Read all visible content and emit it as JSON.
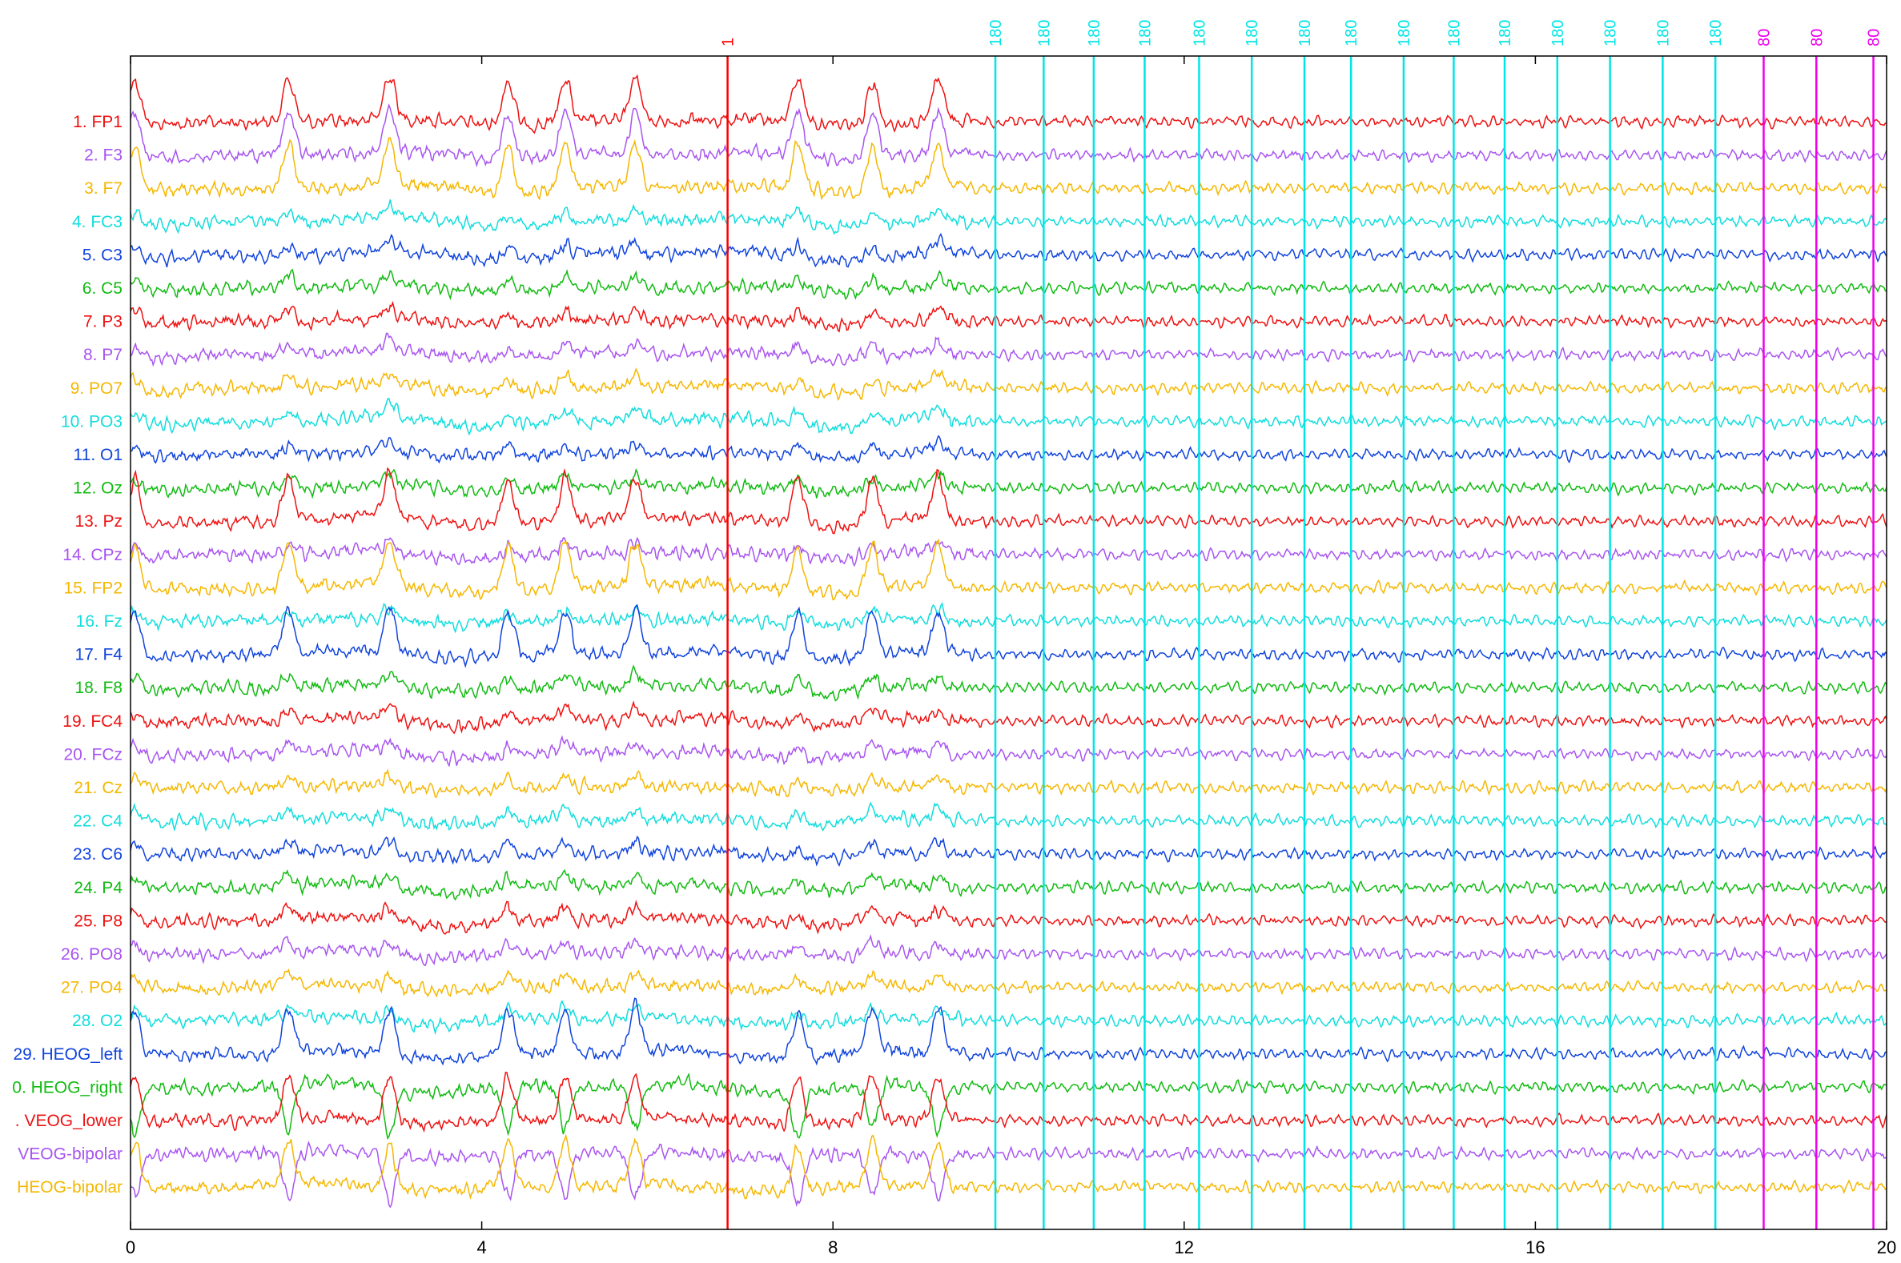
{
  "chart_data": {
    "type": "line",
    "xlim": [
      0,
      20
    ],
    "x_ticks": [
      0,
      4,
      8,
      12,
      16,
      20
    ],
    "x_tick_labels": [
      "0",
      "4",
      "8",
      "12",
      "16",
      "20"
    ],
    "grid": false,
    "color_cycle": [
      "#ee1111",
      "#a855f0",
      "#f5b700",
      "#11dddd",
      "#1144dd",
      "#11bb11"
    ],
    "channels": [
      {
        "label": "1. FP1"
      },
      {
        "label": "2. F3"
      },
      {
        "label": "3. F7"
      },
      {
        "label": "4. FC3"
      },
      {
        "label": "5. C3"
      },
      {
        "label": "6. C5"
      },
      {
        "label": "7. P3"
      },
      {
        "label": "8. P7"
      },
      {
        "label": "9. PO7"
      },
      {
        "label": "10. PO3"
      },
      {
        "label": "11. O1"
      },
      {
        "label": "12. Oz"
      },
      {
        "label": "13. Pz"
      },
      {
        "label": "14. CPz"
      },
      {
        "label": "15. FP2"
      },
      {
        "label": "16. Fz"
      },
      {
        "label": "17. F4"
      },
      {
        "label": "18. F8"
      },
      {
        "label": "19. FC4"
      },
      {
        "label": "20. FCz"
      },
      {
        "label": "21. Cz"
      },
      {
        "label": "22. C4"
      },
      {
        "label": "23. C6"
      },
      {
        "label": "24. P4"
      },
      {
        "label": "25. P8"
      },
      {
        "label": "26. PO8"
      },
      {
        "label": "27. PO4"
      },
      {
        "label": "28. O2"
      },
      {
        "label": "29. HEOG_left"
      },
      {
        "label": "0. HEOG_right"
      },
      {
        "label": ". VEOG_lower"
      },
      {
        "label": "VEOG-bipolar"
      },
      {
        "label": "HEOG-bipolar"
      }
    ],
    "events": [
      {
        "time": 6.8,
        "label": "1",
        "color": "#ff0000"
      },
      {
        "time": 9.85,
        "label": "180",
        "color": "#00e5e5"
      },
      {
        "time": 10.4,
        "label": "180",
        "color": "#00e5e5"
      },
      {
        "time": 10.97,
        "label": "180",
        "color": "#00e5e5"
      },
      {
        "time": 11.55,
        "label": "180",
        "color": "#00e5e5"
      },
      {
        "time": 12.17,
        "label": "180",
        "color": "#00e5e5"
      },
      {
        "time": 12.77,
        "label": "180",
        "color": "#00e5e5"
      },
      {
        "time": 13.37,
        "label": "180",
        "color": "#00e5e5"
      },
      {
        "time": 13.9,
        "label": "180",
        "color": "#00e5e5"
      },
      {
        "time": 14.5,
        "label": "180",
        "color": "#00e5e5"
      },
      {
        "time": 15.07,
        "label": "180",
        "color": "#00e5e5"
      },
      {
        "time": 15.65,
        "label": "180",
        "color": "#00e5e5"
      },
      {
        "time": 16.25,
        "label": "180",
        "color": "#00e5e5"
      },
      {
        "time": 16.85,
        "label": "180",
        "color": "#00e5e5"
      },
      {
        "time": 17.45,
        "label": "180",
        "color": "#00e5e5"
      },
      {
        "time": 18.05,
        "label": "180",
        "color": "#00e5e5"
      },
      {
        "time": 18.6,
        "label": "80",
        "color": "#ee00ee"
      },
      {
        "time": 19.2,
        "label": "80",
        "color": "#ee00ee"
      },
      {
        "time": 19.85,
        "label": "80",
        "color": "#ee00ee"
      }
    ]
  }
}
